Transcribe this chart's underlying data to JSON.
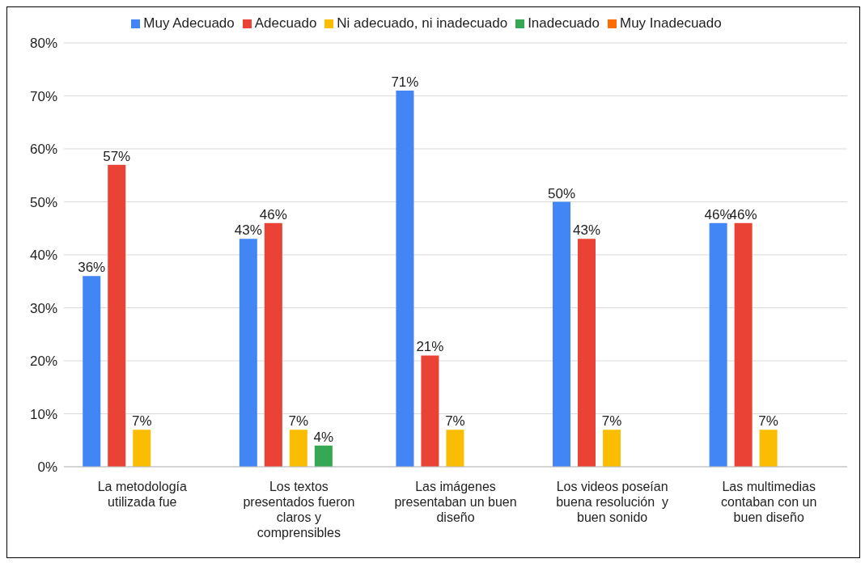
{
  "chart_data": {
    "type": "bar",
    "categories": [
      "La metodología utilizada fue",
      "Los textos presentados fueron claros y comprensibles",
      "Las imágenes presentaban un buen diseño",
      "Los videos poseían buena resolución  y buen sonido",
      "Las multimedias contaban con un buen diseño"
    ],
    "series": [
      {
        "name": "Muy Adecuado",
        "color": "#4285f4",
        "values": [
          36,
          43,
          71,
          50,
          46
        ],
        "value_labels": [
          "36%",
          "43%",
          "71%",
          "50%",
          "46%"
        ]
      },
      {
        "name": "Adecuado",
        "color": "#ea4335",
        "values": [
          57,
          46,
          21,
          43,
          46
        ],
        "value_labels": [
          "57%",
          "46%",
          "21%",
          "43%",
          "46%"
        ]
      },
      {
        "name": "Ni adecuado, ni inadecuado",
        "color": "#fbbc04",
        "values": [
          7,
          7,
          7,
          7,
          7
        ],
        "value_labels": [
          "7%",
          "7%",
          "7%",
          "7%",
          "7%"
        ]
      },
      {
        "name": "Inadecuado",
        "color": "#34a853",
        "values": [
          null,
          4,
          null,
          null,
          null
        ],
        "value_labels": [
          null,
          "4%",
          null,
          null,
          null
        ]
      },
      {
        "name": "Muy Inadecuado",
        "color": "#ff6d01",
        "values": [
          null,
          null,
          null,
          null,
          null
        ]
      }
    ],
    "ylim": [
      0,
      80
    ],
    "yticks": [
      {
        "value": 0,
        "label": "0%"
      },
      {
        "value": 10,
        "label": "10%"
      },
      {
        "value": 20,
        "label": "20%"
      },
      {
        "value": 30,
        "label": "30%"
      },
      {
        "value": 40,
        "label": "40%"
      },
      {
        "value": 50,
        "label": "50%"
      },
      {
        "value": 60,
        "label": "60%"
      },
      {
        "value": 70,
        "label": "70%"
      },
      {
        "value": 80,
        "label": "80%"
      }
    ],
    "grid": "y",
    "legend": "top"
  }
}
